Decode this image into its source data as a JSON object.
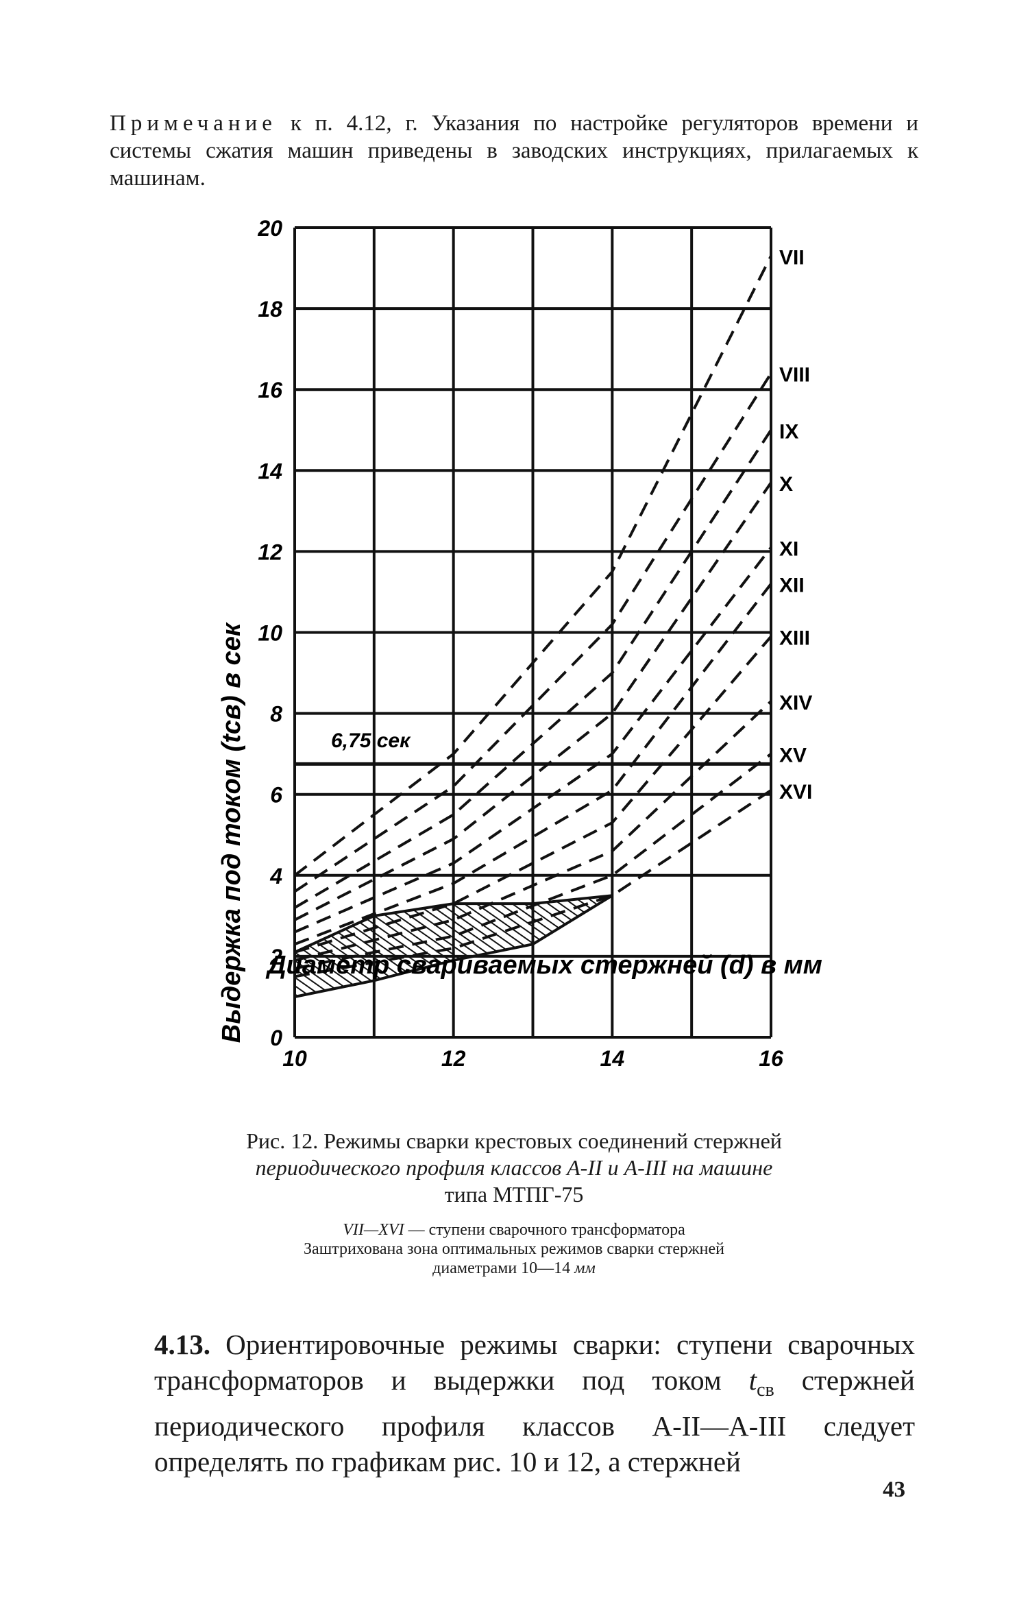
{
  "note": {
    "lead": "Примечание",
    "text": " к п. 4.12, г. Указания по настройке регуляторов времени и системы сжатия машин приведены в заводских инструкциях, прилагаемых к машинам."
  },
  "chart_data": {
    "type": "line",
    "xlabel": "Диаметр свариваемых стержней (d) в мм",
    "ylabel": "Выдержка под током (tсв) в сек",
    "xlim": [
      10,
      16
    ],
    "ylim": [
      0,
      20
    ],
    "x_ticks": [
      10,
      12,
      14,
      16
    ],
    "y_ticks": [
      0,
      2,
      4,
      6,
      8,
      10,
      12,
      14,
      16,
      18,
      20
    ],
    "grid": true,
    "annotation": "6,75 сек",
    "reference_line_y": 6.75,
    "series": [
      {
        "name": "VII",
        "x": [
          10,
          12,
          14,
          16
        ],
        "y": [
          4.0,
          7.0,
          11.5,
          19.3
        ]
      },
      {
        "name": "VIII",
        "x": [
          10,
          12,
          14,
          16
        ],
        "y": [
          3.6,
          6.2,
          10.2,
          16.4
        ]
      },
      {
        "name": "IX",
        "x": [
          10,
          12,
          14,
          16
        ],
        "y": [
          3.2,
          5.5,
          9.0,
          15.0
        ]
      },
      {
        "name": "X",
        "x": [
          10,
          12,
          14,
          16
        ],
        "y": [
          2.9,
          4.9,
          8.0,
          13.7
        ]
      },
      {
        "name": "XI",
        "x": [
          10,
          12,
          14,
          16
        ],
        "y": [
          2.6,
          4.3,
          7.0,
          12.1
        ]
      },
      {
        "name": "XII",
        "x": [
          10,
          12,
          14,
          16
        ],
        "y": [
          2.3,
          3.8,
          6.1,
          11.2
        ]
      },
      {
        "name": "XIII",
        "x": [
          10,
          12,
          14,
          16
        ],
        "y": [
          2.1,
          3.3,
          5.3,
          9.9
        ]
      },
      {
        "name": "XIV",
        "x": [
          10,
          12,
          14,
          16
        ],
        "y": [
          1.9,
          2.9,
          4.6,
          8.3
        ]
      },
      {
        "name": "XV",
        "x": [
          10,
          12,
          14,
          16
        ],
        "y": [
          1.7,
          2.5,
          4.0,
          7.0
        ]
      },
      {
        "name": "XVI",
        "x": [
          10,
          12,
          14,
          16
        ],
        "y": [
          1.5,
          2.2,
          3.5,
          6.1
        ]
      }
    ],
    "optimal_zone": {
      "upper": {
        "x": [
          10,
          11,
          12,
          13,
          14
        ],
        "y": [
          2.1,
          3.0,
          3.3,
          3.3,
          3.5
        ]
      },
      "lower": {
        "x": [
          10,
          11,
          12,
          13,
          14
        ],
        "y": [
          1.0,
          1.4,
          1.9,
          2.3,
          3.5
        ]
      }
    }
  },
  "caption": {
    "line1": "Рис. 12. Режимы сварки крестовых соединений стержней",
    "line2": "периодического профиля классов А-II и А-III на машине",
    "line3": "типа МТПГ-75"
  },
  "legend": {
    "roman": "VII—XVI",
    "line1": " — ступени сварочного трансформатора",
    "line2": "Заштрихована зона оптимальных режимов сварки стержней",
    "line3a": "диаметрами 10—14 ",
    "line3b": "мм"
  },
  "body": {
    "num": "4.13.",
    "text1": " Ориентировочные режимы сварки: ступени сварочных трансформаторов и выдержки под током ",
    "sym": "t",
    "sub": "св",
    "text2": " стержней периодического профиля классов А-II—А-III следует определять по графикам рис. 10 и 12, а стержней"
  },
  "page_number": "43"
}
